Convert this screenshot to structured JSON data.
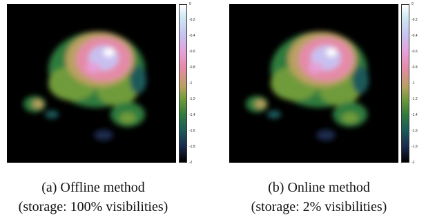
{
  "panels": [
    {
      "caption_line1": "(a) Offline method",
      "caption_line2": "(storage: 100% visibilities)",
      "colorbar_ticks": [
        "0",
        "-0.2",
        "-0.4",
        "-0.6",
        "-0.8",
        "-1",
        "-1.2",
        "-1.4",
        "-1.6",
        "-1.8",
        "-2"
      ]
    },
    {
      "caption_line1": "(b) Online method",
      "caption_line2": "(storage: 2% visibilities)",
      "colorbar_ticks": [
        "0",
        "-0.2",
        "-0.4",
        "-0.6",
        "-0.8",
        "-1",
        "-1.2",
        "-1.4",
        "-1.6",
        "-1.8",
        "-2"
      ]
    }
  ],
  "colormap": {
    "high": "#ffffff",
    "pink": "#e58aa8",
    "brown": "#b9a060",
    "green": "#2f7a3e",
    "teal": "#1a5a5a",
    "low": "#000000"
  }
}
